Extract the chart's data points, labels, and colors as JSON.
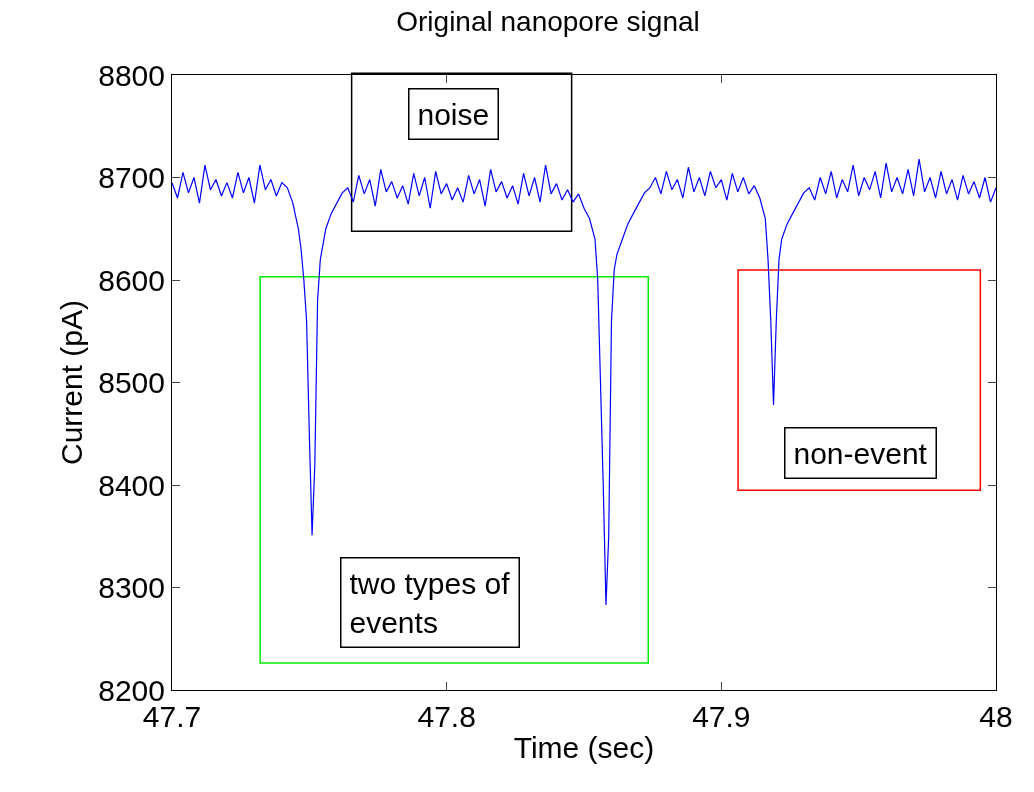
{
  "chart_data": {
    "type": "line",
    "title": "Original nanopore signal",
    "xlabel": "Time (sec)",
    "ylabel": "Current (pA)",
    "xlim": [
      47.7,
      48
    ],
    "xticks": [
      47.7,
      47.8,
      47.9,
      48
    ],
    "ylim": [
      8200,
      8800
    ],
    "yticks": [
      8200,
      8300,
      8400,
      8500,
      8600,
      8700,
      8800
    ],
    "grid": false,
    "marker": "none",
    "line_style": "solid",
    "annotations": [
      "noise",
      "two types of\nevents",
      "non-event"
    ],
    "series": [
      {
        "color": "#0000ff",
        "x": [
          47.7,
          47.702,
          47.704,
          47.706,
          47.708,
          47.71,
          47.712,
          47.714,
          47.716,
          47.718,
          47.72,
          47.722,
          47.724,
          47.726,
          47.728,
          47.73,
          47.732,
          47.734,
          47.736,
          47.738,
          47.74,
          47.742,
          47.744,
          47.746,
          47.747,
          47.748,
          47.749,
          47.75,
          47.751,
          47.752,
          47.753,
          47.754,
          47.756,
          47.758,
          47.76,
          47.762,
          47.764,
          47.766,
          47.768,
          47.77,
          47.772,
          47.774,
          47.776,
          47.778,
          47.78,
          47.782,
          47.784,
          47.786,
          47.788,
          47.79,
          47.792,
          47.794,
          47.796,
          47.798,
          47.8,
          47.802,
          47.804,
          47.806,
          47.808,
          47.81,
          47.812,
          47.814,
          47.816,
          47.818,
          47.82,
          47.822,
          47.824,
          47.826,
          47.828,
          47.83,
          47.832,
          47.834,
          47.836,
          47.838,
          47.84,
          47.842,
          47.844,
          47.846,
          47.848,
          47.85,
          47.852,
          47.854,
          47.855,
          47.856,
          47.857,
          47.858,
          47.859,
          47.86,
          47.861,
          47.862,
          47.864,
          47.866,
          47.868,
          47.87,
          47.872,
          47.874,
          47.876,
          47.878,
          47.88,
          47.882,
          47.884,
          47.886,
          47.888,
          47.89,
          47.892,
          47.894,
          47.896,
          47.898,
          47.9,
          47.902,
          47.904,
          47.906,
          47.908,
          47.91,
          47.912,
          47.914,
          47.916,
          47.917,
          47.918,
          47.919,
          47.92,
          47.921,
          47.922,
          47.924,
          47.926,
          47.928,
          47.93,
          47.932,
          47.934,
          47.936,
          47.938,
          47.94,
          47.942,
          47.944,
          47.946,
          47.948,
          47.95,
          47.952,
          47.954,
          47.956,
          47.958,
          47.96,
          47.962,
          47.964,
          47.966,
          47.968,
          47.97,
          47.972,
          47.974,
          47.976,
          47.978,
          47.98,
          47.982,
          47.984,
          47.986,
          47.988,
          47.99,
          47.992,
          47.994,
          47.996,
          47.998,
          48.0
        ],
        "values": [
          8695,
          8680,
          8705,
          8685,
          8700,
          8675,
          8712,
          8688,
          8698,
          8682,
          8695,
          8680,
          8705,
          8685,
          8700,
          8675,
          8712,
          8688,
          8698,
          8682,
          8695,
          8690,
          8675,
          8650,
          8630,
          8600,
          8560,
          8450,
          8351,
          8420,
          8580,
          8620,
          8650,
          8665,
          8675,
          8685,
          8690,
          8676,
          8702,
          8684,
          8698,
          8672,
          8708,
          8686,
          8696,
          8680,
          8692,
          8674,
          8704,
          8682,
          8700,
          8670,
          8706,
          8684,
          8694,
          8678,
          8690,
          8676,
          8702,
          8684,
          8698,
          8672,
          8708,
          8686,
          8696,
          8680,
          8692,
          8674,
          8704,
          8682,
          8700,
          8676,
          8712,
          8684,
          8694,
          8678,
          8688,
          8676,
          8684,
          8670,
          8660,
          8640,
          8600,
          8500,
          8400,
          8283,
          8350,
          8560,
          8610,
          8625,
          8640,
          8655,
          8665,
          8675,
          8685,
          8690,
          8700,
          8684,
          8706,
          8688,
          8698,
          8680,
          8710,
          8686,
          8700,
          8682,
          8706,
          8690,
          8698,
          8678,
          8704,
          8686,
          8700,
          8684,
          8692,
          8680,
          8660,
          8620,
          8560,
          8478,
          8560,
          8620,
          8640,
          8655,
          8665,
          8675,
          8685,
          8690,
          8678,
          8700,
          8684,
          8706,
          8680,
          8698,
          8686,
          8712,
          8682,
          8700,
          8688,
          8706,
          8680,
          8714,
          8686,
          8700,
          8684,
          8708,
          8682,
          8718,
          8686,
          8700,
          8680,
          8706,
          8684,
          8698,
          8678,
          8702,
          8684,
          8696,
          8680,
          8700,
          8676,
          8690
        ]
      }
    ]
  }
}
